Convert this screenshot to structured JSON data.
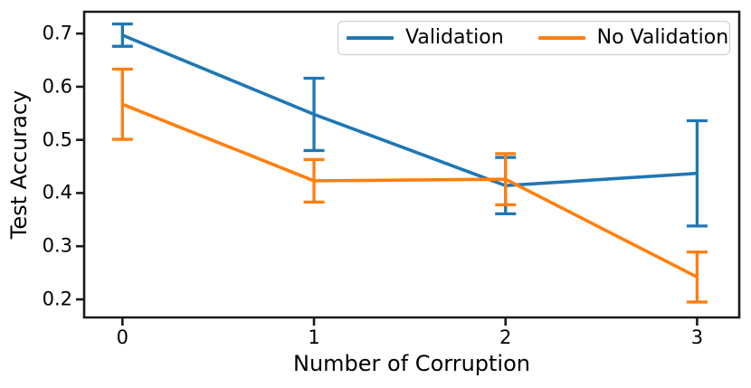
{
  "figure": {
    "background": "#ffffff",
    "text_color": "#000000"
  },
  "chart_data": {
    "type": "line",
    "x": [
      0,
      1,
      2,
      3
    ],
    "series": [
      {
        "name": "Validation",
        "color": "#1f77b4",
        "values": [
          0.697,
          0.548,
          0.414,
          0.437
        ],
        "yerr": [
          0.021,
          0.068,
          0.053,
          0.099
        ]
      },
      {
        "name": "No Validation",
        "color": "#ff7f0e",
        "values": [
          0.567,
          0.423,
          0.426,
          0.242
        ],
        "yerr": [
          0.066,
          0.04,
          0.048,
          0.047
        ]
      }
    ],
    "title": "",
    "xlabel": "Number of Corruption",
    "ylabel": "Test Accuracy",
    "x_ticks": [
      0,
      1,
      2,
      3
    ],
    "x_tick_labels": [
      "0",
      "1",
      "2",
      "3"
    ],
    "y_ticks": [
      0.2,
      0.3,
      0.4,
      0.5,
      0.6,
      0.7
    ],
    "y_tick_labels": [
      "0.2",
      "0.3",
      "0.4",
      "0.5",
      "0.6",
      "0.7"
    ],
    "xlim": [
      -0.2,
      3.22
    ],
    "ylim": [
      0.166,
      0.741
    ],
    "grid": false,
    "legend_position": "upper right",
    "legend_border_color": "#cccccc",
    "axis_color": "#1a1a1a",
    "error_bars": true
  }
}
